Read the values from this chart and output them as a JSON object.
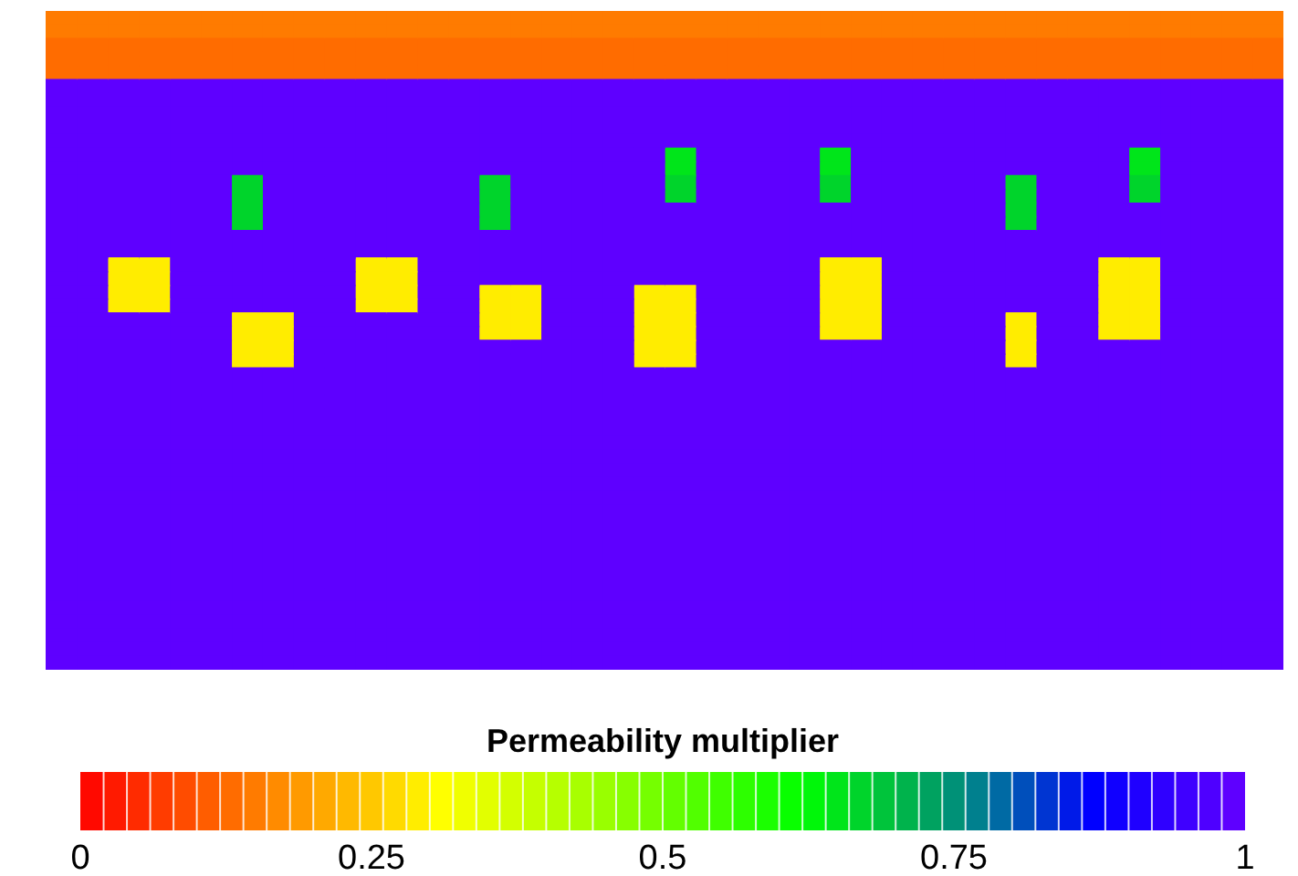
{
  "chart_data": {
    "type": "heatmap",
    "clabel": "Permeability multiplier",
    "clim": [
      0,
      1
    ],
    "cticks": [
      0,
      {
        "value": 0.25,
        "label": "0.25"
      },
      {
        "value": 0.5,
        "label": "0.5"
      },
      {
        "value": 0.75,
        "label": "0.75"
      },
      1
    ],
    "categories": [
      null,
      null,
      null,
      null,
      null,
      null,
      null,
      null,
      null,
      null,
      null,
      null,
      null,
      null,
      null,
      null,
      null,
      null,
      null,
      null,
      null,
      null,
      null,
      null,
      null,
      null,
      null,
      null,
      null,
      null,
      null,
      null,
      null,
      null,
      null,
      null,
      null,
      null,
      null,
      null
    ],
    "y_categories": [
      null,
      null,
      null,
      null,
      null,
      null,
      null,
      null,
      null,
      null,
      null,
      null,
      null,
      null,
      null,
      null,
      null,
      null,
      null,
      null,
      null,
      null,
      null,
      null,
      null,
      null,
      null,
      null,
      null,
      null,
      null,
      null,
      null,
      null,
      null,
      null,
      null,
      null,
      null,
      null,
      null,
      null,
      null,
      null,
      null,
      null,
      null,
      null
    ],
    "cells": [
      [
        0.14,
        0.14,
        0.14,
        0.14,
        0.14,
        0.14,
        0.14,
        0.14,
        0.14,
        0.14,
        0.14,
        0.14,
        0.14,
        0.14,
        0.14,
        0.14,
        0.14,
        0.14,
        0.14,
        0.14,
        0.14,
        0.14,
        0.14,
        0.14,
        0.14,
        0.14,
        0.14,
        0.14,
        0.14,
        0.14,
        0.14,
        0.14,
        0.14,
        0.14,
        0.14,
        0.14,
        0.14,
        0.14,
        0.14,
        0.14
      ],
      [
        0.14,
        0.14,
        0.14,
        0.14,
        0.14,
        0.14,
        0.14,
        0.14,
        0.14,
        0.14,
        0.14,
        0.14,
        0.14,
        0.14,
        0.14,
        0.14,
        0.14,
        0.14,
        0.14,
        0.14,
        0.14,
        0.14,
        0.14,
        0.14,
        0.14,
        0.14,
        0.14,
        0.14,
        0.14,
        0.14,
        0.14,
        0.14,
        0.14,
        0.14,
        0.14,
        0.14,
        0.14,
        0.14,
        0.14,
        0.14
      ],
      [
        0.12,
        0.12,
        0.12,
        0.12,
        0.12,
        0.12,
        0.12,
        0.12,
        0.12,
        0.12,
        0.12,
        0.12,
        0.12,
        0.12,
        0.12,
        0.12,
        0.12,
        0.12,
        0.12,
        0.12,
        0.12,
        0.12,
        0.12,
        0.12,
        0.12,
        0.12,
        0.12,
        0.12,
        0.12,
        0.12,
        0.12,
        0.12,
        0.12,
        0.12,
        0.12,
        0.12,
        0.12,
        0.12,
        0.12,
        0.12
      ],
      [
        0.12,
        0.12,
        0.12,
        0.12,
        0.12,
        0.12,
        0.12,
        0.12,
        0.12,
        0.12,
        0.12,
        0.12,
        0.12,
        0.12,
        0.12,
        0.12,
        0.12,
        0.12,
        0.12,
        0.12,
        0.12,
        0.12,
        0.12,
        0.12,
        0.12,
        0.12,
        0.12,
        0.12,
        0.12,
        0.12,
        0.12,
        0.12,
        0.12,
        0.12,
        0.12,
        0.12,
        0.12,
        0.12,
        0.12,
        0.12
      ],
      [
        0.12,
        0.12,
        0.12,
        0.12,
        0.12,
        0.12,
        0.12,
        0.12,
        0.12,
        0.12,
        0.12,
        0.12,
        0.12,
        0.12,
        0.12,
        0.12,
        0.12,
        0.12,
        0.12,
        0.12,
        0.12,
        0.12,
        0.12,
        0.12,
        0.12,
        0.12,
        0.12,
        0.12,
        0.12,
        0.12,
        0.12,
        0.12,
        0.12,
        0.12,
        0.12,
        0.12,
        0.12,
        0.12,
        0.12,
        0.12
      ],
      [
        1,
        1,
        1,
        1,
        1,
        1,
        1,
        1,
        1,
        1,
        1,
        1,
        1,
        1,
        1,
        1,
        1,
        1,
        1,
        1,
        1,
        1,
        1,
        1,
        1,
        1,
        1,
        1,
        1,
        1,
        1,
        1,
        1,
        1,
        1,
        1,
        1,
        1,
        1,
        1
      ],
      [
        1,
        1,
        1,
        1,
        1,
        1,
        1,
        1,
        1,
        1,
        1,
        1,
        1,
        1,
        1,
        1,
        1,
        1,
        1,
        1,
        1,
        1,
        1,
        1,
        1,
        1,
        1,
        1,
        1,
        1,
        1,
        1,
        1,
        1,
        1,
        1,
        1,
        1,
        1,
        1
      ],
      [
        1,
        1,
        1,
        1,
        1,
        1,
        1,
        1,
        1,
        1,
        1,
        1,
        1,
        1,
        1,
        1,
        1,
        1,
        1,
        1,
        1,
        1,
        1,
        1,
        1,
        1,
        1,
        1,
        1,
        1,
        1,
        1,
        1,
        1,
        1,
        1,
        1,
        1,
        1,
        1
      ],
      [
        1,
        1,
        1,
        1,
        1,
        1,
        1,
        1,
        1,
        1,
        1,
        1,
        1,
        1,
        1,
        1,
        1,
        1,
        1,
        1,
        1,
        1,
        1,
        1,
        1,
        1,
        1,
        1,
        1,
        1,
        1,
        1,
        1,
        1,
        1,
        1,
        1,
        1,
        1,
        1
      ],
      [
        1,
        1,
        1,
        1,
        1,
        1,
        1,
        1,
        1,
        1,
        1,
        1,
        1,
        1,
        1,
        1,
        1,
        1,
        1,
        1,
        1,
        1,
        1,
        1,
        1,
        1,
        1,
        1,
        1,
        1,
        1,
        1,
        1,
        1,
        1,
        1,
        1,
        1,
        1,
        1
      ],
      [
        1,
        1,
        1,
        1,
        1,
        1,
        1,
        1,
        1,
        1,
        1,
        1,
        1,
        1,
        1,
        1,
        1,
        1,
        1,
        1,
        0.64,
        1,
        1,
        1,
        1,
        0.64,
        1,
        1,
        1,
        1,
        1,
        1,
        1,
        1,
        1,
        0.64,
        1,
        1,
        1,
        1
      ],
      [
        1,
        1,
        1,
        1,
        1,
        1,
        1,
        1,
        1,
        1,
        1,
        1,
        1,
        1,
        1,
        1,
        1,
        1,
        1,
        1,
        0.64,
        1,
        1,
        1,
        1,
        0.64,
        1,
        1,
        1,
        1,
        1,
        1,
        1,
        1,
        1,
        0.64,
        1,
        1,
        1,
        1
      ],
      [
        1,
        1,
        1,
        1,
        1,
        1,
        0.66,
        1,
        1,
        1,
        1,
        1,
        1,
        1,
        0.66,
        1,
        1,
        1,
        1,
        1,
        0.66,
        1,
        1,
        1,
        1,
        0.66,
        1,
        1,
        1,
        1,
        1,
        0.66,
        1,
        1,
        1,
        0.66,
        1,
        1,
        1,
        1
      ],
      [
        1,
        1,
        1,
        1,
        1,
        1,
        0.66,
        1,
        1,
        1,
        1,
        1,
        1,
        1,
        0.66,
        1,
        1,
        1,
        1,
        1,
        0.66,
        1,
        1,
        1,
        1,
        0.66,
        1,
        1,
        1,
        1,
        1,
        0.66,
        1,
        1,
        1,
        0.66,
        1,
        1,
        1,
        1
      ],
      [
        1,
        1,
        1,
        1,
        1,
        1,
        0.66,
        1,
        1,
        1,
        1,
        1,
        1,
        1,
        0.66,
        1,
        1,
        1,
        1,
        1,
        1,
        1,
        1,
        1,
        1,
        1,
        1,
        1,
        1,
        1,
        1,
        0.66,
        1,
        1,
        1,
        1,
        1,
        1,
        1,
        1
      ],
      [
        1,
        1,
        1,
        1,
        1,
        1,
        0.66,
        1,
        1,
        1,
        1,
        1,
        1,
        1,
        0.66,
        1,
        1,
        1,
        1,
        1,
        1,
        1,
        1,
        1,
        1,
        1,
        1,
        1,
        1,
        1,
        1,
        0.66,
        1,
        1,
        1,
        1,
        1,
        1,
        1,
        1
      ],
      [
        1,
        1,
        1,
        1,
        1,
        1,
        1,
        1,
        1,
        1,
        1,
        1,
        1,
        1,
        1,
        1,
        1,
        1,
        1,
        1,
        1,
        1,
        1,
        1,
        1,
        1,
        1,
        1,
        1,
        1,
        1,
        1,
        1,
        1,
        1,
        1,
        1,
        1,
        1,
        1
      ],
      [
        1,
        1,
        1,
        1,
        1,
        1,
        1,
        1,
        1,
        1,
        1,
        1,
        1,
        1,
        1,
        1,
        1,
        1,
        1,
        1,
        1,
        1,
        1,
        1,
        1,
        1,
        1,
        1,
        1,
        1,
        1,
        1,
        1,
        1,
        1,
        1,
        1,
        1,
        1,
        1
      ],
      [
        1,
        1,
        0.28,
        0.28,
        1,
        1,
        1,
        1,
        1,
        1,
        0.28,
        0.28,
        1,
        1,
        1,
        1,
        1,
        1,
        1,
        1,
        1,
        1,
        1,
        1,
        1,
        0.28,
        0.28,
        1,
        1,
        1,
        1,
        1,
        1,
        1,
        0.28,
        0.28,
        1,
        1,
        1,
        1
      ],
      [
        1,
        1,
        0.28,
        0.28,
        1,
        1,
        1,
        1,
        1,
        1,
        0.28,
        0.28,
        1,
        1,
        1,
        1,
        1,
        1,
        1,
        1,
        1,
        1,
        1,
        1,
        1,
        0.28,
        0.28,
        1,
        1,
        1,
        1,
        1,
        1,
        1,
        0.28,
        0.28,
        1,
        1,
        1,
        1
      ],
      [
        1,
        1,
        0.28,
        0.28,
        1,
        1,
        1,
        1,
        1,
        1,
        0.28,
        0.28,
        1,
        1,
        0.28,
        0.28,
        1,
        1,
        1,
        0.28,
        0.28,
        1,
        1,
        1,
        1,
        0.28,
        0.28,
        1,
        1,
        1,
        1,
        1,
        1,
        1,
        0.28,
        0.28,
        1,
        1,
        1,
        1
      ],
      [
        1,
        1,
        0.28,
        0.28,
        1,
        1,
        1,
        1,
        1,
        1,
        0.28,
        0.28,
        1,
        1,
        0.28,
        0.28,
        1,
        1,
        1,
        0.28,
        0.28,
        1,
        1,
        1,
        1,
        0.28,
        0.28,
        1,
        1,
        1,
        1,
        1,
        1,
        1,
        0.28,
        0.28,
        1,
        1,
        1,
        1
      ],
      [
        1,
        1,
        1,
        1,
        1,
        1,
        0.28,
        0.28,
        1,
        1,
        1,
        1,
        1,
        1,
        0.28,
        0.28,
        1,
        1,
        1,
        0.28,
        0.28,
        1,
        1,
        1,
        1,
        0.28,
        0.28,
        1,
        1,
        1,
        1,
        0.28,
        1,
        1,
        0.28,
        0.28,
        1,
        1,
        1,
        1
      ],
      [
        1,
        1,
        1,
        1,
        1,
        1,
        0.28,
        0.28,
        1,
        1,
        1,
        1,
        1,
        1,
        0.28,
        0.28,
        1,
        1,
        1,
        0.28,
        0.28,
        1,
        1,
        1,
        1,
        0.28,
        0.28,
        1,
        1,
        1,
        1,
        0.28,
        1,
        1,
        0.28,
        0.28,
        1,
        1,
        1,
        1
      ],
      [
        1,
        1,
        1,
        1,
        1,
        1,
        0.28,
        0.28,
        1,
        1,
        1,
        1,
        1,
        1,
        1,
        1,
        1,
        1,
        1,
        0.28,
        0.28,
        1,
        1,
        1,
        1,
        1,
        1,
        1,
        1,
        1,
        1,
        0.28,
        1,
        1,
        1,
        1,
        1,
        1,
        1,
        1
      ],
      [
        1,
        1,
        1,
        1,
        1,
        1,
        0.28,
        0.28,
        1,
        1,
        1,
        1,
        1,
        1,
        1,
        1,
        1,
        1,
        1,
        0.28,
        0.28,
        1,
        1,
        1,
        1,
        1,
        1,
        1,
        1,
        1,
        1,
        0.28,
        1,
        1,
        1,
        1,
        1,
        1,
        1,
        1
      ],
      [
        1,
        1,
        1,
        1,
        1,
        1,
        1,
        1,
        1,
        1,
        1,
        1,
        1,
        1,
        1,
        1,
        1,
        1,
        1,
        1,
        1,
        1,
        1,
        1,
        1,
        1,
        1,
        1,
        1,
        1,
        1,
        1,
        1,
        1,
        1,
        1,
        1,
        1,
        1,
        1
      ],
      [
        1,
        1,
        1,
        1,
        1,
        1,
        1,
        1,
        1,
        1,
        1,
        1,
        1,
        1,
        1,
        1,
        1,
        1,
        1,
        1,
        1,
        1,
        1,
        1,
        1,
        1,
        1,
        1,
        1,
        1,
        1,
        1,
        1,
        1,
        1,
        1,
        1,
        1,
        1,
        1
      ],
      [
        1,
        1,
        1,
        1,
        1,
        1,
        1,
        1,
        1,
        1,
        1,
        1,
        1,
        1,
        1,
        1,
        1,
        1,
        1,
        1,
        1,
        1,
        1,
        1,
        1,
        1,
        1,
        1,
        1,
        1,
        1,
        1,
        1,
        1,
        1,
        1,
        1,
        1,
        1,
        1
      ],
      [
        1,
        1,
        1,
        1,
        1,
        1,
        1,
        1,
        1,
        1,
        1,
        1,
        1,
        1,
        1,
        1,
        1,
        1,
        1,
        1,
        1,
        1,
        1,
        1,
        1,
        1,
        1,
        1,
        1,
        1,
        1,
        1,
        1,
        1,
        1,
        1,
        1,
        1,
        1,
        1
      ],
      [
        1,
        1,
        1,
        1,
        1,
        1,
        1,
        1,
        1,
        1,
        1,
        1,
        1,
        1,
        1,
        1,
        1,
        1,
        1,
        1,
        1,
        1,
        1,
        1,
        1,
        1,
        1,
        1,
        1,
        1,
        1,
        1,
        1,
        1,
        1,
        1,
        1,
        1,
        1,
        1
      ],
      [
        1,
        1,
        1,
        1,
        1,
        1,
        1,
        1,
        1,
        1,
        1,
        1,
        1,
        1,
        1,
        1,
        1,
        1,
        1,
        1,
        1,
        1,
        1,
        1,
        1,
        1,
        1,
        1,
        1,
        1,
        1,
        1,
        1,
        1,
        1,
        1,
        1,
        1,
        1,
        1
      ],
      [
        1,
        1,
        1,
        1,
        1,
        1,
        1,
        1,
        1,
        1,
        1,
        1,
        1,
        1,
        1,
        1,
        1,
        1,
        1,
        1,
        1,
        1,
        1,
        1,
        1,
        1,
        1,
        1,
        1,
        1,
        1,
        1,
        1,
        1,
        1,
        1,
        1,
        1,
        1,
        1
      ],
      [
        1,
        1,
        1,
        1,
        1,
        1,
        1,
        1,
        1,
        1,
        1,
        1,
        1,
        1,
        1,
        1,
        1,
        1,
        1,
        1,
        1,
        1,
        1,
        1,
        1,
        1,
        1,
        1,
        1,
        1,
        1,
        1,
        1,
        1,
        1,
        1,
        1,
        1,
        1,
        1
      ],
      [
        1,
        1,
        1,
        1,
        1,
        1,
        1,
        1,
        1,
        1,
        1,
        1,
        1,
        1,
        1,
        1,
        1,
        1,
        1,
        1,
        1,
        1,
        1,
        1,
        1,
        1,
        1,
        1,
        1,
        1,
        1,
        1,
        1,
        1,
        1,
        1,
        1,
        1,
        1,
        1
      ],
      [
        1,
        1,
        1,
        1,
        1,
        1,
        1,
        1,
        1,
        1,
        1,
        1,
        1,
        1,
        1,
        1,
        1,
        1,
        1,
        1,
        1,
        1,
        1,
        1,
        1,
        1,
        1,
        1,
        1,
        1,
        1,
        1,
        1,
        1,
        1,
        1,
        1,
        1,
        1,
        1
      ],
      [
        1,
        1,
        1,
        1,
        1,
        1,
        1,
        1,
        1,
        1,
        1,
        1,
        1,
        1,
        1,
        1,
        1,
        1,
        1,
        1,
        1,
        1,
        1,
        1,
        1,
        1,
        1,
        1,
        1,
        1,
        1,
        1,
        1,
        1,
        1,
        1,
        1,
        1,
        1,
        1
      ],
      [
        1,
        1,
        1,
        1,
        1,
        1,
        1,
        1,
        1,
        1,
        1,
        1,
        1,
        1,
        1,
        1,
        1,
        1,
        1,
        1,
        1,
        1,
        1,
        1,
        1,
        1,
        1,
        1,
        1,
        1,
        1,
        1,
        1,
        1,
        1,
        1,
        1,
        1,
        1,
        1
      ],
      [
        1,
        1,
        1,
        1,
        1,
        1,
        1,
        1,
        1,
        1,
        1,
        1,
        1,
        1,
        1,
        1,
        1,
        1,
        1,
        1,
        1,
        1,
        1,
        1,
        1,
        1,
        1,
        1,
        1,
        1,
        1,
        1,
        1,
        1,
        1,
        1,
        1,
        1,
        1,
        1
      ],
      [
        1,
        1,
        1,
        1,
        1,
        1,
        1,
        1,
        1,
        1,
        1,
        1,
        1,
        1,
        1,
        1,
        1,
        1,
        1,
        1,
        1,
        1,
        1,
        1,
        1,
        1,
        1,
        1,
        1,
        1,
        1,
        1,
        1,
        1,
        1,
        1,
        1,
        1,
        1,
        1
      ],
      [
        1,
        1,
        1,
        1,
        1,
        1,
        1,
        1,
        1,
        1,
        1,
        1,
        1,
        1,
        1,
        1,
        1,
        1,
        1,
        1,
        1,
        1,
        1,
        1,
        1,
        1,
        1,
        1,
        1,
        1,
        1,
        1,
        1,
        1,
        1,
        1,
        1,
        1,
        1,
        1
      ],
      [
        1,
        1,
        1,
        1,
        1,
        1,
        1,
        1,
        1,
        1,
        1,
        1,
        1,
        1,
        1,
        1,
        1,
        1,
        1,
        1,
        1,
        1,
        1,
        1,
        1,
        1,
        1,
        1,
        1,
        1,
        1,
        1,
        1,
        1,
        1,
        1,
        1,
        1,
        1,
        1
      ],
      [
        1,
        1,
        1,
        1,
        1,
        1,
        1,
        1,
        1,
        1,
        1,
        1,
        1,
        1,
        1,
        1,
        1,
        1,
        1,
        1,
        1,
        1,
        1,
        1,
        1,
        1,
        1,
        1,
        1,
        1,
        1,
        1,
        1,
        1,
        1,
        1,
        1,
        1,
        1,
        1
      ],
      [
        1,
        1,
        1,
        1,
        1,
        1,
        1,
        1,
        1,
        1,
        1,
        1,
        1,
        1,
        1,
        1,
        1,
        1,
        1,
        1,
        1,
        1,
        1,
        1,
        1,
        1,
        1,
        1,
        1,
        1,
        1,
        1,
        1,
        1,
        1,
        1,
        1,
        1,
        1,
        1
      ],
      [
        1,
        1,
        1,
        1,
        1,
        1,
        1,
        1,
        1,
        1,
        1,
        1,
        1,
        1,
        1,
        1,
        1,
        1,
        1,
        1,
        1,
        1,
        1,
        1,
        1,
        1,
        1,
        1,
        1,
        1,
        1,
        1,
        1,
        1,
        1,
        1,
        1,
        1,
        1,
        1
      ],
      [
        1,
        1,
        1,
        1,
        1,
        1,
        1,
        1,
        1,
        1,
        1,
        1,
        1,
        1,
        1,
        1,
        1,
        1,
        1,
        1,
        1,
        1,
        1,
        1,
        1,
        1,
        1,
        1,
        1,
        1,
        1,
        1,
        1,
        1,
        1,
        1,
        1,
        1,
        1,
        1
      ],
      [
        1,
        1,
        1,
        1,
        1,
        1,
        1,
        1,
        1,
        1,
        1,
        1,
        1,
        1,
        1,
        1,
        1,
        1,
        1,
        1,
        1,
        1,
        1,
        1,
        1,
        1,
        1,
        1,
        1,
        1,
        1,
        1,
        1,
        1,
        1,
        1,
        1,
        1,
        1,
        1
      ],
      [
        1,
        1,
        1,
        1,
        1,
        1,
        1,
        1,
        1,
        1,
        1,
        1,
        1,
        1,
        1,
        1,
        1,
        1,
        1,
        1,
        1,
        1,
        1,
        1,
        1,
        1,
        1,
        1,
        1,
        1,
        1,
        1,
        1,
        1,
        1,
        1,
        1,
        1,
        1,
        1
      ]
    ]
  }
}
